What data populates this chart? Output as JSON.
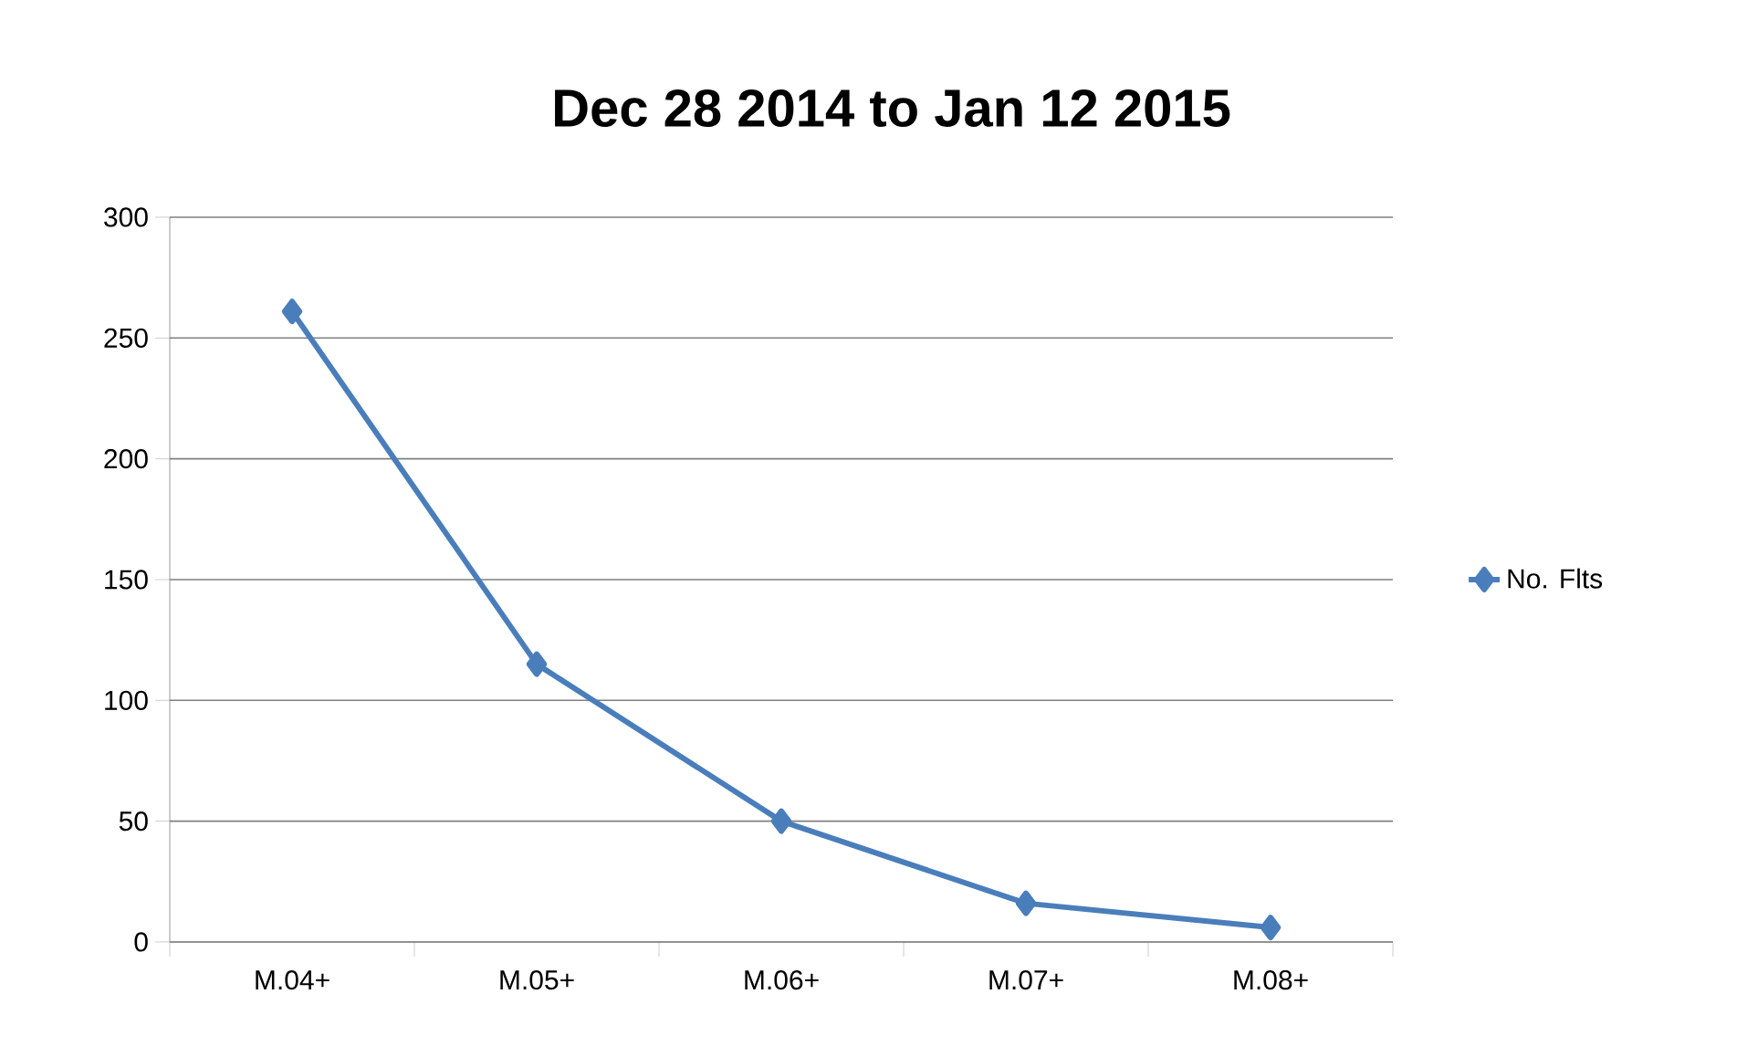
{
  "chart_data": {
    "type": "line",
    "title": "Dec 28 2014 to Jan 12 2015",
    "categories": [
      "M.04+",
      "M.05+",
      "M.06+",
      "M.07+",
      "M.08+"
    ],
    "series": [
      {
        "name": "No. Flts",
        "color": "#4a7ebb",
        "values": [
          261,
          115,
          50,
          16,
          6
        ]
      }
    ],
    "ylim": [
      0,
      300
    ],
    "yticks": [
      0,
      50,
      100,
      150,
      200,
      250,
      300
    ],
    "grid": "y",
    "legend": "right",
    "marker": "diamond",
    "line_style": "solid"
  }
}
